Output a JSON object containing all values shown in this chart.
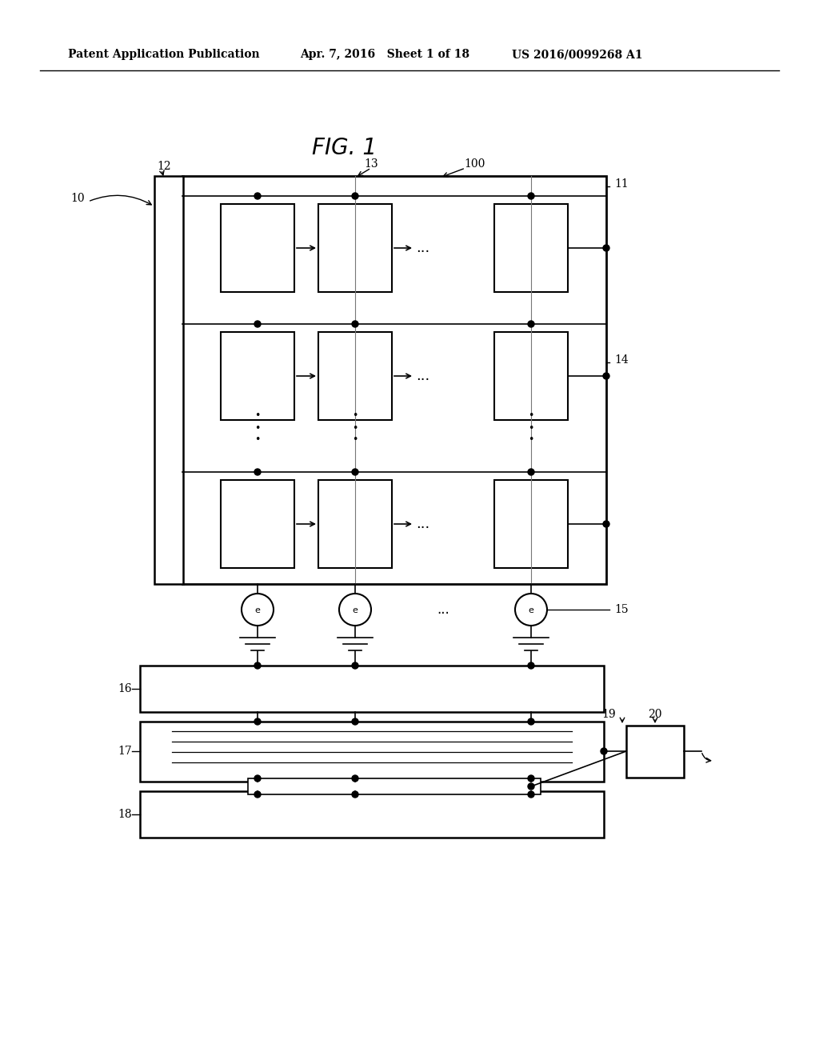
{
  "header_left": "Patent Application Publication",
  "header_mid": "Apr. 7, 2016   Sheet 1 of 18",
  "header_right": "US 2016/0099268 A1",
  "fig_title": "FIG. 1",
  "bg_color": "#ffffff",
  "line_color": "#000000"
}
